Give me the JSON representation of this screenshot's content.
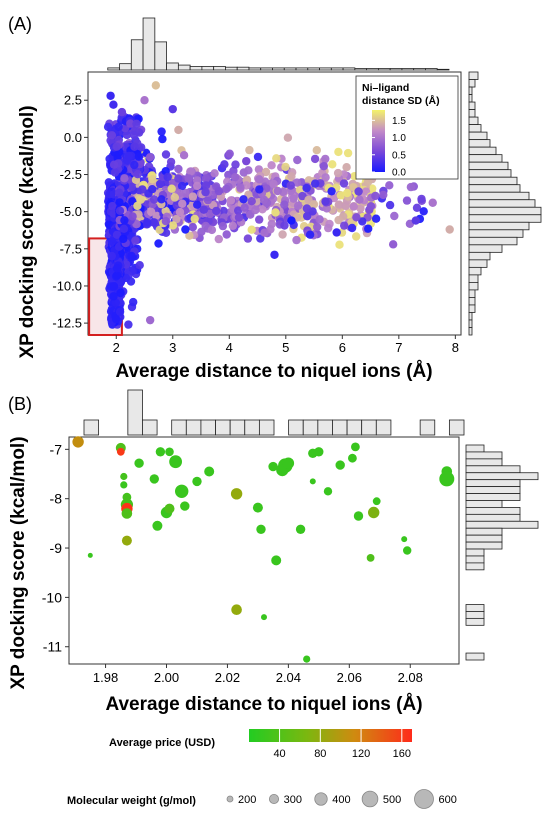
{
  "chart_data": [
    {
      "panel_label": "(A)",
      "type": "scatter",
      "xlabel": "Average distance to niquel ions (Å)",
      "ylabel": "XP docking score (kcal/mol)",
      "xlim": [
        1.5,
        8.1
      ],
      "ylim": [
        -13.3,
        4.4
      ],
      "x_ticks": [
        "2",
        "3",
        "4",
        "5",
        "6",
        "7",
        "8"
      ],
      "y_ticks": [
        "2.5",
        "0.0",
        "-2.5",
        "-5.0",
        "-7.5",
        "-10.0",
        "-12.5"
      ],
      "x_tick_values": [
        2,
        3,
        4,
        5,
        6,
        7,
        8
      ],
      "y_tick_values": [
        2.5,
        0.0,
        -2.5,
        -5.0,
        -7.5,
        -10.0,
        -12.5
      ],
      "grid": false,
      "legend": {
        "title": "Ni–ligand distance SD (Å)",
        "position": "top-right",
        "ticks": [
          "1.5",
          "1.0",
          "0.5",
          "0.0"
        ],
        "tick_values": [
          1.5,
          1.0,
          0.5,
          0.0
        ],
        "range": [
          0.0,
          1.8
        ],
        "colors": [
          "#1a1aff",
          "#7a48d8",
          "#c28ac8",
          "#f3f36a"
        ]
      },
      "highlight_region": {
        "x": [
          1.52,
          2.1
        ],
        "y": [
          -13.3,
          -6.8
        ],
        "color": "#d42020"
      },
      "notes": "approximately 2300 points; dense cluster near x≈2, y from -2 to -12.5",
      "outliers": [
        {
          "x": 1.9,
          "y": 2.8,
          "sd": 0.2
        },
        {
          "x": 1.95,
          "y": 2.2,
          "sd": 0.25
        },
        {
          "x": 2.1,
          "y": 1.7,
          "sd": 0.5
        },
        {
          "x": 2.7,
          "y": 3.5,
          "sd": 1.5
        },
        {
          "x": 2.5,
          "y": 2.5,
          "sd": 1.0
        },
        {
          "x": 3.1,
          "y": 0.5,
          "sd": 1.4
        },
        {
          "x": 3.0,
          "y": 1.9,
          "sd": 0.4
        },
        {
          "x": 7.9,
          "y": -6.2,
          "sd": 1.4
        },
        {
          "x": 7.6,
          "y": -4.4,
          "sd": 1.0
        },
        {
          "x": 6.9,
          "y": -7.2,
          "sd": 0.8
        },
        {
          "x": 7.3,
          "y": -5.6,
          "sd": 0.4
        },
        {
          "x": 2.6,
          "y": -12.3,
          "sd": 0.9
        },
        {
          "x": 4.8,
          "y": -7.9,
          "sd": 0.2
        },
        {
          "x": 5.9,
          "y": -6.4,
          "sd": 0.2
        },
        {
          "x": 5.1,
          "y": -5.6,
          "sd": 0.0
        },
        {
          "x": 4.3,
          "y": -1.6,
          "sd": 0.6
        },
        {
          "x": 3.2,
          "y": -1.2,
          "sd": 1.0
        }
      ],
      "hist_x_counts": [
        0,
        3,
        9,
        43,
        74,
        40,
        10,
        7,
        5,
        5,
        5,
        4,
        4,
        3,
        3,
        3,
        3,
        3,
        3,
        3,
        3,
        3,
        2,
        2,
        2,
        2,
        2,
        2,
        2,
        1
      ],
      "hist_y_counts": [
        3,
        2,
        1,
        1,
        2,
        2,
        3,
        4,
        6,
        7,
        9,
        11,
        13,
        14,
        16,
        17,
        20,
        22,
        24,
        24,
        20,
        18,
        16,
        11,
        7,
        6,
        4,
        3,
        3,
        2,
        2,
        2,
        1,
        1,
        1
      ]
    },
    {
      "panel_label": "(B)",
      "type": "scatter",
      "xlabel": "Average distance to niquel ions (Å)",
      "ylabel": "XP docking score (kcal/mol)",
      "xlim": [
        1.968,
        2.096
      ],
      "ylim": [
        -11.35,
        -6.75
      ],
      "x_ticks": [
        "1.98",
        "2.00",
        "2.02",
        "2.04",
        "2.06",
        "2.08"
      ],
      "y_ticks": [
        "-7",
        "-8",
        "-9",
        "-10",
        "-11"
      ],
      "x_tick_values": [
        1.98,
        2.0,
        2.02,
        2.04,
        2.06,
        2.08
      ],
      "y_tick_values": [
        -7,
        -8,
        -9,
        -10,
        -11
      ],
      "grid": false,
      "points": [
        {
          "x": 1.971,
          "y": -6.85,
          "mw": 450,
          "price": 95
        },
        {
          "x": 1.975,
          "y": -9.15,
          "mw": 220,
          "price": 20
        },
        {
          "x": 1.985,
          "y": -6.97,
          "mw": 400,
          "price": 30
        },
        {
          "x": 1.985,
          "y": -7.05,
          "mw": 320,
          "price": 160
        },
        {
          "x": 1.986,
          "y": -7.55,
          "mw": 300,
          "price": 25
        },
        {
          "x": 1.986,
          "y": -7.72,
          "mw": 300,
          "price": 20
        },
        {
          "x": 1.987,
          "y": -7.97,
          "mw": 360,
          "price": 25
        },
        {
          "x": 1.987,
          "y": -8.12,
          "mw": 480,
          "price": 25
        },
        {
          "x": 1.987,
          "y": -8.2,
          "mw": 450,
          "price": 165
        },
        {
          "x": 1.987,
          "y": -8.3,
          "mw": 420,
          "price": 30
        },
        {
          "x": 1.987,
          "y": -8.85,
          "mw": 400,
          "price": 60
        },
        {
          "x": 1.991,
          "y": -7.28,
          "mw": 380,
          "price": 20
        },
        {
          "x": 1.996,
          "y": -7.6,
          "mw": 380,
          "price": 20
        },
        {
          "x": 1.997,
          "y": -8.55,
          "mw": 400,
          "price": 20
        },
        {
          "x": 1.998,
          "y": -7.05,
          "mw": 380,
          "price": 20
        },
        {
          "x": 2.0,
          "y": -8.28,
          "mw": 450,
          "price": 20
        },
        {
          "x": 2.001,
          "y": -8.2,
          "mw": 400,
          "price": 30
        },
        {
          "x": 2.001,
          "y": -7.05,
          "mw": 350,
          "price": 20
        },
        {
          "x": 2.003,
          "y": -7.25,
          "mw": 500,
          "price": 20
        },
        {
          "x": 2.005,
          "y": -7.85,
          "mw": 520,
          "price": 20
        },
        {
          "x": 2.006,
          "y": -8.15,
          "mw": 380,
          "price": 20
        },
        {
          "x": 2.01,
          "y": -7.65,
          "mw": 380,
          "price": 20
        },
        {
          "x": 2.014,
          "y": -7.45,
          "mw": 400,
          "price": 20
        },
        {
          "x": 2.023,
          "y": -7.9,
          "mw": 450,
          "price": 60
        },
        {
          "x": 2.023,
          "y": -10.25,
          "mw": 420,
          "price": 60
        },
        {
          "x": 2.03,
          "y": -8.18,
          "mw": 400,
          "price": 20
        },
        {
          "x": 2.031,
          "y": -8.62,
          "mw": 380,
          "price": 20
        },
        {
          "x": 2.032,
          "y": -10.4,
          "mw": 260,
          "price": 20
        },
        {
          "x": 2.035,
          "y": -7.35,
          "mw": 380,
          "price": 20
        },
        {
          "x": 2.036,
          "y": -9.25,
          "mw": 400,
          "price": 20
        },
        {
          "x": 2.038,
          "y": -7.42,
          "mw": 480,
          "price": 20
        },
        {
          "x": 2.039,
          "y": -7.33,
          "mw": 560,
          "price": 20
        },
        {
          "x": 2.04,
          "y": -7.28,
          "mw": 450,
          "price": 20
        },
        {
          "x": 2.044,
          "y": -8.62,
          "mw": 380,
          "price": 20
        },
        {
          "x": 2.046,
          "y": -11.25,
          "mw": 300,
          "price": 20
        },
        {
          "x": 2.048,
          "y": -7.08,
          "mw": 380,
          "price": 20
        },
        {
          "x": 2.048,
          "y": -7.65,
          "mw": 260,
          "price": 20
        },
        {
          "x": 2.05,
          "y": -7.05,
          "mw": 380,
          "price": 20
        },
        {
          "x": 2.053,
          "y": -7.85,
          "mw": 340,
          "price": 20
        },
        {
          "x": 2.057,
          "y": -7.32,
          "mw": 380,
          "price": 20
        },
        {
          "x": 2.061,
          "y": -7.18,
          "mw": 360,
          "price": 20
        },
        {
          "x": 2.062,
          "y": -6.95,
          "mw": 360,
          "price": 20
        },
        {
          "x": 2.063,
          "y": -8.35,
          "mw": 380,
          "price": 20
        },
        {
          "x": 2.067,
          "y": -9.2,
          "mw": 320,
          "price": 30
        },
        {
          "x": 2.068,
          "y": -8.28,
          "mw": 450,
          "price": 50
        },
        {
          "x": 2.069,
          "y": -8.05,
          "mw": 320,
          "price": 20
        },
        {
          "x": 2.078,
          "y": -8.82,
          "mw": 260,
          "price": 20
        },
        {
          "x": 2.079,
          "y": -9.05,
          "mw": 340,
          "price": 20
        },
        {
          "x": 2.092,
          "y": -7.45,
          "mw": 420,
          "price": 20
        },
        {
          "x": 2.092,
          "y": -7.6,
          "mw": 580,
          "price": 20
        }
      ],
      "hist_x_counts": [
        1,
        0,
        0,
        3,
        1,
        0,
        1,
        1,
        1,
        1,
        1,
        1,
        1,
        0,
        1,
        1,
        1,
        1,
        1,
        1,
        1,
        0,
        0,
        1,
        0,
        1
      ],
      "hist_y_counts": [
        1,
        2,
        2,
        3,
        4,
        3,
        3,
        3,
        2,
        3,
        3,
        4,
        2,
        2,
        2,
        1,
        1,
        1,
        0,
        0,
        0,
        0,
        0,
        1,
        1,
        1,
        0,
        0,
        0,
        0,
        1
      ],
      "price_legend": {
        "title": "Average price (USD)",
        "ticks": [
          "40",
          "80",
          "120",
          "160"
        ],
        "tick_values": [
          40,
          80,
          120,
          160
        ],
        "range": [
          10,
          170
        ],
        "colors": [
          "#22cc22",
          "#9aa80c",
          "#dd7a10",
          "#ff2a1a"
        ]
      },
      "size_legend": {
        "title": "Molecular weight (g/mol)",
        "labels": [
          "200",
          "300",
          "400",
          "500",
          "600"
        ],
        "values": [
          200,
          300,
          400,
          500,
          600
        ]
      }
    }
  ]
}
